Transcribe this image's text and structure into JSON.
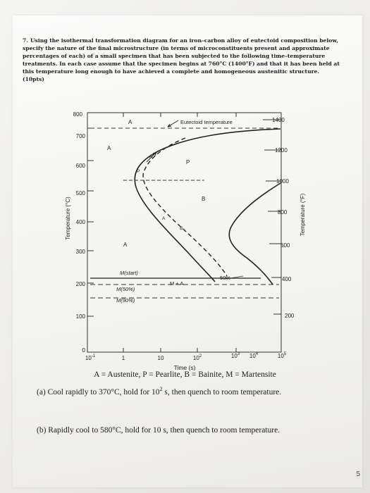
{
  "question": {
    "number": "7.",
    "text": "Using the isothermal transformation diagram for an iron–carbon alloy of eutectoid composition below, specify the nature of the final microstructure (in terms of microconstituents present and approximate percentages of each) of a small specimen that has been subjected to the following time–temperature treatments. In each case assume that the specimen begins at 760°C (1400°F) and that it has been held at this temperature long enough to have achieved a complete and homogeneous austenitic structure. (10pts)"
  },
  "diagram": {
    "left_axis_label": "Temperature (°C)",
    "right_axis_label": "Temperature (°F)",
    "x_axis_label": "Time (s)",
    "left_ticks": [
      "800",
      "700",
      "600",
      "500",
      "400",
      "300",
      "200",
      "100",
      "0"
    ],
    "right_ticks": [
      "1400",
      "1200",
      "1000",
      "800",
      "600",
      "400",
      "200"
    ],
    "x_ticks": {
      "t0_base": "10",
      "t0_exp": "-1",
      "t1": "1",
      "t2": "10",
      "t3_base": "10",
      "t3_exp": "2",
      "t4_base": "10",
      "t4_exp": "3",
      "t5_base": "10",
      "t5_exp": "4",
      "t6_base": "10",
      "t6_exp": "5"
    },
    "region_labels": {
      "a_top": "A",
      "a_left": "A",
      "a_lower": "A",
      "p_region": "P",
      "b_region": "B",
      "p_curve": "P",
      "a_to_p": "A",
      "a_to_b": "A",
      "b_curve": "B",
      "eutectoid": "Eutectoid temperature",
      "m_start": "M(start)",
      "m_plus_a": "M + A",
      "m50": "M(50%)",
      "m90": "M(90%)",
      "pct50": "50%"
    }
  },
  "legend": "A = Austenite, P = Pearlite, B = Bainite, M = Martensite",
  "parts": {
    "a_prefix": "(a) Cool rapidly to 370°C, hold for 10",
    "a_exp": "2",
    "a_suffix": " s, then quench to room temperature.",
    "b": "(b) Rapidly cool to 580°C, hold for 10 s, then quench to room temperature."
  },
  "page_number": "5"
}
